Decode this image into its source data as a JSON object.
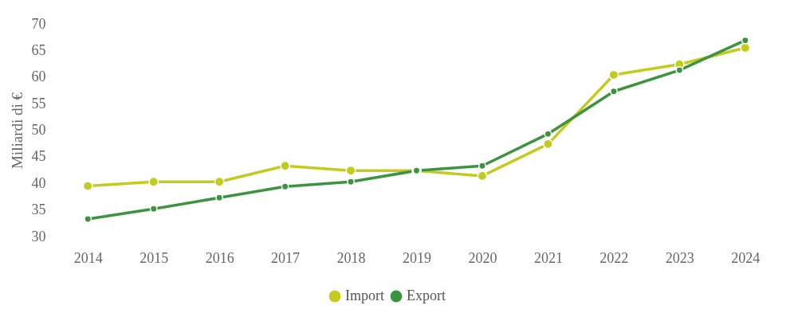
{
  "chart_data": {
    "type": "line",
    "ylabel": "Miliardi di €",
    "categories": [
      "2014",
      "2015",
      "2016",
      "2017",
      "2018",
      "2019",
      "2020",
      "2021",
      "2022",
      "2023",
      "2024"
    ],
    "series": [
      {
        "name": "Import",
        "color": "#c3cb1f",
        "values": [
          39.5,
          40.3,
          40.3,
          43.3,
          42.4,
          42.4,
          41.4,
          47.4,
          60.4,
          62.4,
          65.5
        ]
      },
      {
        "name": "Export",
        "color": "#3d9440",
        "values": [
          33.3,
          35.2,
          37.3,
          39.4,
          40.3,
          42.4,
          43.3,
          49.3,
          57.3,
          61.3,
          66.9
        ]
      }
    ],
    "ylim": [
      30,
      70
    ],
    "yticks": [
      30,
      35,
      40,
      45,
      50,
      55,
      60,
      65,
      70
    ],
    "grid": false,
    "legend": "bottom",
    "marker": "circle",
    "line_style": "solid"
  }
}
